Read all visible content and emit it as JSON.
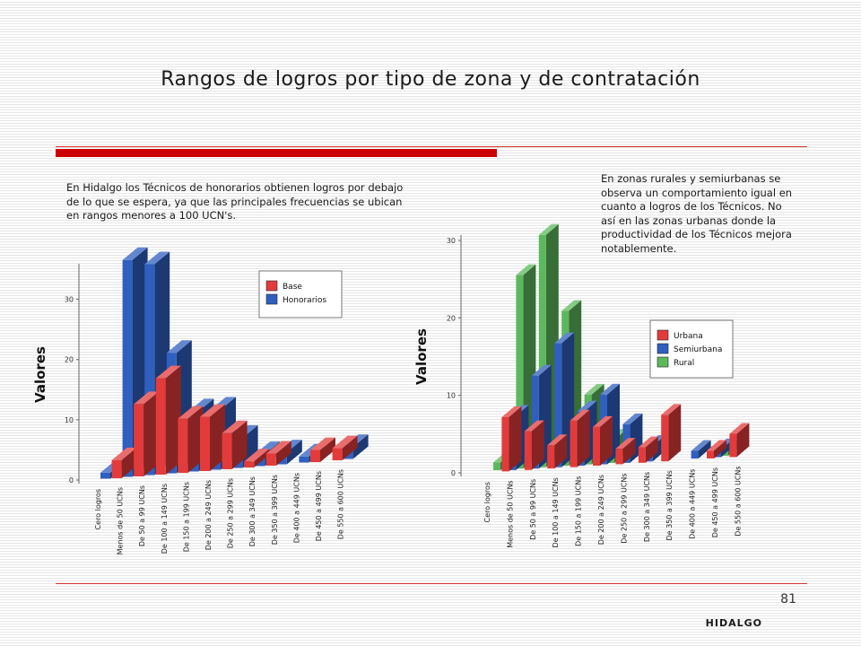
{
  "title": "Rangos de logros por tipo de zona y de contratación",
  "colors": {
    "accent_red": "#cc0000",
    "rule_red": "#d43030"
  },
  "left_text": "En Hidalgo los Técnicos de honorarios obtienen logros por debajo de lo que se espera, ya que las principales frecuencias se ubican en rangos menores a 100 UCN's.",
  "right_text": "En zonas rurales y semiurbanas se observa un comportamiento igual en cuanto a logros de los Técnicos. No así en las zonas urbanas donde la productividad de los Técnicos mejora notablemente.",
  "page_number": "81",
  "footer": "HIDALGO",
  "chart_data": [
    {
      "type": "bar",
      "ylabel": "Valores",
      "ylim": [
        0,
        35
      ],
      "yticks": [
        "0",
        "10",
        "20",
        "30"
      ],
      "legend": "right",
      "categories": [
        "Cero logros",
        "Menos de 50 UCNs",
        "De 50 a 99 UCNs",
        "De 100 a 149 UCNs",
        "De 150 a 199 UCNs",
        "De 200 a 249 UCNs",
        "De 250 a 299 UCNs",
        "De 300 a 349 UCNs",
        "De 350 a 399 UCNs",
        "De 400 a 449 UCNs",
        "De 450 a 499 UCNs",
        "De 550 a 600 UCNs"
      ],
      "series": [
        {
          "name": "Base",
          "color": "#e33b3b",
          "values": [
            0,
            3,
            12,
            16,
            9,
            9,
            6,
            1,
            2,
            0,
            2,
            2
          ]
        },
        {
          "name": "Honorarios",
          "color": "#2f5fbf",
          "values": [
            1,
            36,
            35,
            20,
            10,
            10,
            5,
            2,
            2,
            1,
            0,
            2
          ]
        }
      ]
    },
    {
      "type": "bar",
      "ylabel": "Valores",
      "ylim": [
        0,
        30
      ],
      "yticks": [
        "0",
        "10",
        "20",
        "30"
      ],
      "legend": "right",
      "categories": [
        "Cero logros",
        "Menos de 50 UCNs",
        "De 50 a 99 UCNs",
        "De 100 a 149 UCNs",
        "De 150 a 199 UCNs",
        "De 200 a 249 UCNs",
        "De 250 a 299 UCNs",
        "De 300 a 349 UCNs",
        "De 350 a 399 UCNs",
        "De 400 a 449 UCNs",
        "De 450 a 499 UCNs",
        "De 550 a 600 UCNs"
      ],
      "series": [
        {
          "name": "Urbana",
          "color": "#e33b3b",
          "values": [
            0,
            7,
            5,
            3,
            6,
            5,
            2,
            2,
            6,
            0,
            1,
            3
          ]
        },
        {
          "name": "Semiurbana",
          "color": "#2f5fbf",
          "values": [
            0,
            7,
            12,
            16,
            7,
            9,
            5,
            2,
            0,
            1,
            1,
            0
          ]
        },
        {
          "name": "Rural",
          "color": "#5cb85c",
          "values": [
            1,
            25,
            30,
            20,
            9,
            3,
            0,
            0,
            0,
            0,
            1,
            0
          ]
        }
      ]
    }
  ]
}
